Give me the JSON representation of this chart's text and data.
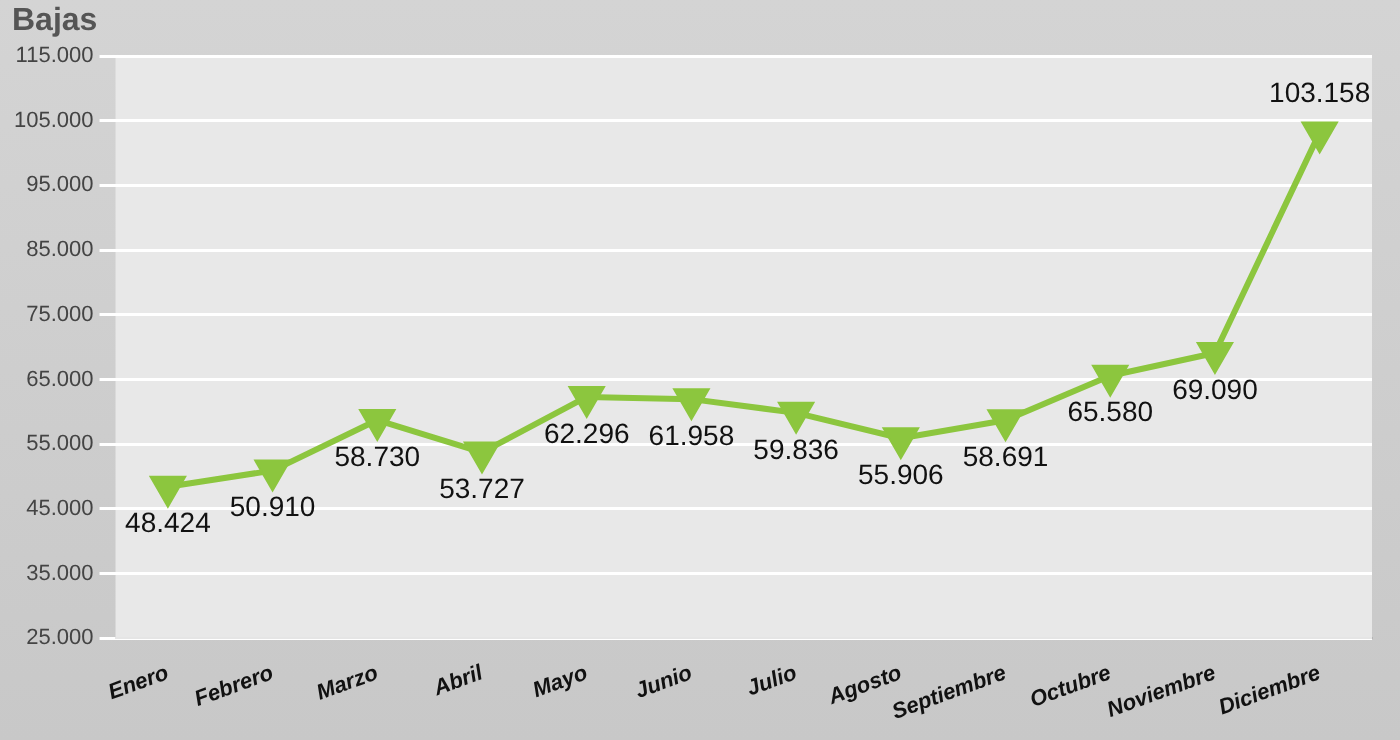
{
  "chart_data": {
    "type": "line",
    "title": "Bajas",
    "categories": [
      "Enero",
      "Febrero",
      "Marzo",
      "Abril",
      "Mayo",
      "Junio",
      "Julio",
      "Agosto",
      "Septiembre",
      "Octubre",
      "Noviembre",
      "Diciembre"
    ],
    "series": [
      {
        "color": "#8cc63e",
        "values": [
          48424,
          50910,
          58730,
          53727,
          62296,
          61958,
          59836,
          55906,
          58691,
          65580,
          69090,
          103158
        ],
        "value_labels": [
          "48.424",
          "50.910",
          "58.730",
          "53.727",
          "62.296",
          "61.958",
          "59.836",
          "55.906",
          "58.691",
          "65.580",
          "69.090",
          "103.158"
        ]
      }
    ],
    "ylim": [
      25000,
      115000
    ],
    "yticks": [
      {
        "value": 25000,
        "label": "25.000"
      },
      {
        "value": 35000,
        "label": "35.000"
      },
      {
        "value": 45000,
        "label": "45.000"
      },
      {
        "value": 55000,
        "label": "55.000"
      },
      {
        "value": 65000,
        "label": "65.000"
      },
      {
        "value": 75000,
        "label": "75.000"
      },
      {
        "value": 85000,
        "label": "85.000"
      },
      {
        "value": 95000,
        "label": "95.000"
      },
      {
        "value": 105000,
        "label": "105.000"
      },
      {
        "value": 115000,
        "label": "115.000"
      }
    ],
    "grid": "y",
    "legend": false,
    "marker": "triangle",
    "line_style": "solid"
  }
}
